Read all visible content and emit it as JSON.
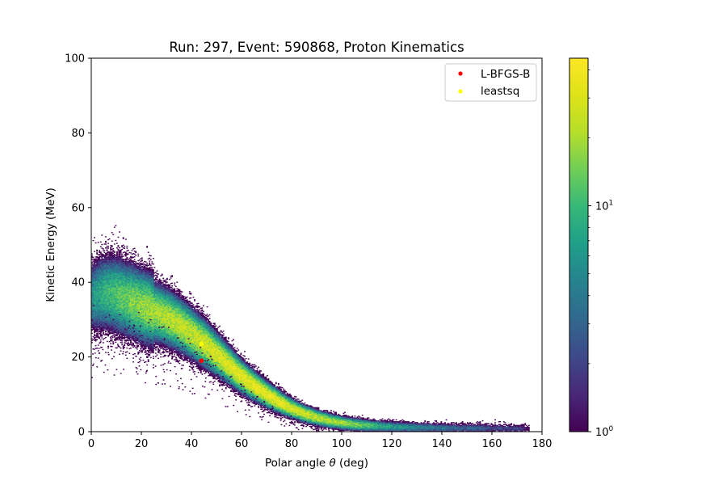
{
  "chart_data": {
    "type": "heatmap",
    "title": "Run: 297, Event: 590868, Proton Kinematics",
    "xlabel_prefix": "Polar angle ",
    "xlabel_symbol": "θ",
    "xlabel_suffix": " (deg)",
    "ylabel": "Kinetic Energy (MeV)",
    "xlim": [
      0,
      180
    ],
    "ylim": [
      0,
      100
    ],
    "x_ticks": [
      "0",
      "20",
      "40",
      "60",
      "80",
      "100",
      "120",
      "140",
      "160",
      "180"
    ],
    "y_ticks": [
      "0",
      "20",
      "40",
      "60",
      "80",
      "100"
    ],
    "colorbar": {
      "scale": "log",
      "colormap": "viridis",
      "range": [
        1,
        45
      ],
      "tick_base": "10",
      "ticks": [
        {
          "value": 1,
          "exp": "0"
        },
        {
          "value": 10,
          "exp": "1"
        }
      ]
    },
    "band": {
      "description_points_theta_deg": [
        0,
        5,
        10,
        15,
        20,
        25,
        30,
        35,
        40,
        45,
        50,
        55,
        60,
        65,
        70,
        75,
        80,
        85,
        90,
        95,
        100,
        105,
        110,
        115,
        120,
        125,
        130,
        135,
        140,
        145,
        150,
        155,
        160,
        165,
        170,
        175
      ],
      "center_energy_mev": [
        36,
        37,
        36.5,
        35,
        33.5,
        32,
        30.5,
        28.5,
        26,
        23.5,
        20.5,
        17.5,
        14.5,
        12,
        9.8,
        7.8,
        6.0,
        4.6,
        3.6,
        2.8,
        2.2,
        1.8,
        1.5,
        1.3,
        1.15,
        1.05,
        0.95,
        0.9,
        0.85,
        0.8,
        0.8,
        0.75,
        0.75,
        0.7,
        0.7,
        0.7
      ],
      "peak_counts": [
        6,
        9,
        12,
        15,
        18,
        20,
        22,
        24,
        26,
        28,
        30,
        32,
        34,
        36,
        36,
        34,
        30,
        28,
        25,
        22,
        20,
        16,
        12,
        9,
        7,
        6,
        5,
        4,
        4,
        3,
        3,
        3,
        2,
        2,
        2,
        1
      ]
    },
    "series": [
      {
        "name": "L-BFGS-B",
        "color": "#ff0000",
        "points": [
          {
            "x": 44,
            "y": 19
          }
        ]
      },
      {
        "name": "leastsq",
        "color": "#ffff00",
        "points": [
          {
            "x": 44,
            "y": 23.5
          }
        ]
      }
    ],
    "legend_position": "top-right",
    "grid": false
  }
}
